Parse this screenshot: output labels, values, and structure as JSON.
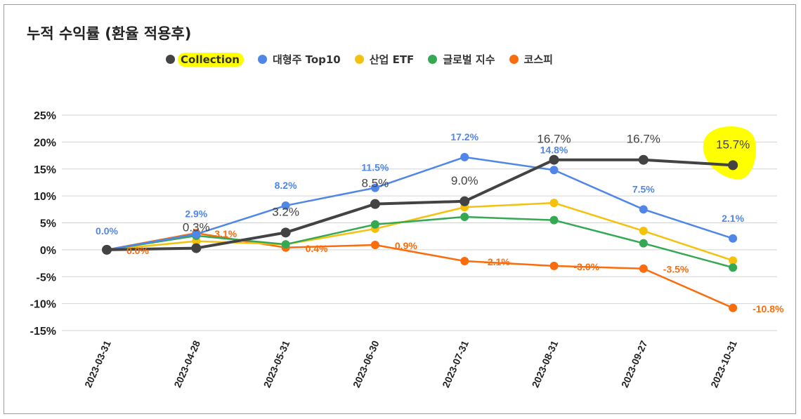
{
  "chart_data": {
    "type": "line",
    "title": "누적 수익률 (환율 적용후)",
    "categories": [
      "2023-03-31",
      "2023-04-28",
      "2023-05-31",
      "2023-06-30",
      "2023-07-31",
      "2023-08-31",
      "2023-09-27",
      "2023-10-31"
    ],
    "ylim": [
      -15,
      25
    ],
    "yticks": [
      25,
      20,
      15,
      10,
      5,
      0,
      -5,
      -10,
      -15
    ],
    "ytick_labels": [
      "25%",
      "20%",
      "15%",
      "10%",
      "5%",
      "0%",
      "-5%",
      "-10%",
      "-15%"
    ],
    "grid": true,
    "legend_position": "top",
    "series": [
      {
        "name": "Collection",
        "color": "#434343",
        "values": [
          0.0,
          0.3,
          3.2,
          8.5,
          9.0,
          16.7,
          16.7,
          15.7
        ],
        "labels": [
          "",
          "0.3%",
          "3.2%",
          "8.5%",
          "9.0%",
          "16.7%",
          "16.7%",
          "15.7%"
        ],
        "highlighted": true
      },
      {
        "name": "대형주 Top10",
        "color": "#4f86e8",
        "values": [
          0.0,
          2.9,
          8.2,
          11.5,
          17.2,
          14.8,
          7.5,
          2.1
        ],
        "labels": [
          "0.0%",
          "2.9%",
          "8.2%",
          "11.5%",
          "17.2%",
          "14.8%",
          "7.5%",
          "2.1%"
        ]
      },
      {
        "name": "산업 ETF",
        "color": "#f4c20d",
        "values": [
          0.0,
          1.6,
          1.0,
          3.9,
          7.9,
          8.7,
          3.5,
          -2.0
        ],
        "labels": []
      },
      {
        "name": "글로벌 지수",
        "color": "#34a853",
        "values": [
          0.0,
          2.6,
          1.0,
          4.7,
          6.1,
          5.5,
          1.2,
          -3.3
        ],
        "labels": []
      },
      {
        "name": "코스피",
        "color": "#fa6c0c",
        "values": [
          0.0,
          3.1,
          0.4,
          0.9,
          -2.1,
          -3.0,
          -3.5,
          -10.8
        ],
        "labels": [
          "0.0%",
          "3.1%",
          "0.4%",
          "0.9%",
          "-2.1%",
          "-3.0%",
          "-3.5%",
          "-10.8%"
        ]
      }
    ]
  }
}
